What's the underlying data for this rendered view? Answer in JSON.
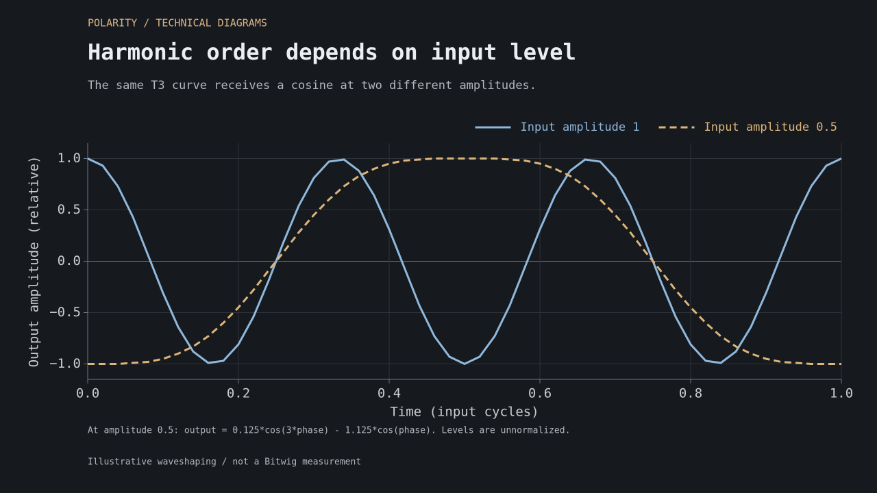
{
  "eyebrow": "POLARITY / TECHNICAL DIAGRAMS",
  "chart_data": {
    "type": "line",
    "title": "Harmonic order depends on input level",
    "subtitle": "The same T3 curve receives a cosine at two different amplitudes.",
    "x_label": "Time (input cycles)",
    "y_label": "Output amplitude (relative)",
    "annotation": "At amplitude 0.5: output = 0.125*cos(3*phase) - 1.125*cos(phase). Levels are unnormalized.",
    "caption": "Illustrative waveshaping / not a Bitwig measurement",
    "legend": "top right",
    "grid": true,
    "xlim": [
      0,
      1
    ],
    "ylim": [
      -1.15,
      1.15
    ],
    "xticks": [
      {
        "value": 0,
        "label": "0.0"
      },
      {
        "value": 0.2,
        "label": "0.2"
      },
      {
        "value": 0.4,
        "label": "0.4"
      },
      {
        "value": 0.6,
        "label": "0.6"
      },
      {
        "value": 0.8,
        "label": "0.8"
      },
      {
        "value": 1,
        "label": "1.0"
      }
    ],
    "yticks": [
      {
        "value": 1,
        "label": "1.0"
      },
      {
        "value": 0.5,
        "label": "0.5"
      },
      {
        "value": 0,
        "label": "0.0"
      },
      {
        "value": -0.5,
        "label": "−0.5"
      },
      {
        "value": -1,
        "label": "−1.0"
      }
    ],
    "x": [
      0,
      0.02,
      0.04,
      0.06,
      0.08,
      0.1,
      0.12,
      0.14,
      0.16,
      0.18,
      0.2,
      0.22,
      0.24,
      0.26,
      0.28,
      0.3,
      0.32,
      0.34,
      0.36,
      0.38,
      0.4,
      0.42,
      0.44,
      0.46,
      0.48,
      0.5,
      0.52,
      0.54,
      0.56,
      0.58,
      0.6,
      0.62,
      0.64,
      0.66,
      0.68,
      0.7,
      0.72,
      0.74,
      0.76,
      0.78,
      0.8,
      0.82,
      0.84,
      0.86,
      0.88,
      0.9,
      0.92,
      0.94,
      0.96,
      0.98,
      1
    ],
    "series": [
      {
        "name": "Input amplitude 1",
        "color": "#8fb8dc",
        "dash": false,
        "values": [
          1,
          0.93,
          0.73,
          0.43,
          0.06,
          -0.31,
          -0.64,
          -0.88,
          -0.99,
          -0.97,
          -0.81,
          -0.54,
          -0.19,
          0.19,
          0.54,
          0.81,
          0.97,
          0.99,
          0.88,
          0.64,
          0.31,
          -0.06,
          -0.43,
          -0.73,
          -0.93,
          -1,
          -0.93,
          -0.73,
          -0.43,
          -0.06,
          0.31,
          0.64,
          0.88,
          0.99,
          0.97,
          0.81,
          0.54,
          0.19,
          -0.19,
          -0.54,
          -0.81,
          -0.97,
          -0.99,
          -0.88,
          -0.64,
          -0.31,
          0.06,
          0.43,
          0.73,
          0.93,
          1
        ]
      },
      {
        "name": "Input amplitude 0.5",
        "color": "#dcb57a",
        "dash": true,
        "values": [
          -1,
          -1,
          -1,
          -0.99,
          -0.98,
          -0.95,
          -0.9,
          -0.83,
          -0.73,
          -0.6,
          -0.45,
          -0.28,
          -0.09,
          0.09,
          0.28,
          0.45,
          0.6,
          0.73,
          0.83,
          0.9,
          0.95,
          0.98,
          0.99,
          1,
          1,
          1,
          1,
          1,
          0.99,
          0.98,
          0.95,
          0.9,
          0.83,
          0.73,
          0.6,
          0.45,
          0.28,
          0.09,
          -0.09,
          -0.28,
          -0.45,
          -0.6,
          -0.73,
          -0.83,
          -0.9,
          -0.95,
          -0.98,
          -0.99,
          -1,
          -1,
          -1
        ]
      }
    ]
  }
}
